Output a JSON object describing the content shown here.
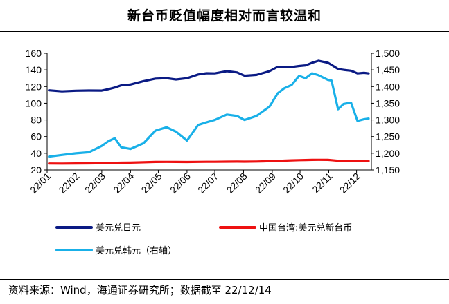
{
  "title": "新台币贬值幅度相对而言较温和",
  "source": "资料来源：Wind，海通证券研究所；数据截至 22/12/14",
  "colors": {
    "jpy": "#0a1a84",
    "twd": "#ee1111",
    "krw": "#19b0e8"
  },
  "legend": {
    "jpy": "美元兑日元",
    "twd": "中国台湾:美元兑新台币",
    "krw": "美元兑韩元（右轴）"
  },
  "chart_data": {
    "type": "line",
    "title": "新台币贬值幅度相对而言较温和",
    "x_ticks": [
      "22/01",
      "22/02",
      "22/03",
      "22/04",
      "22/05",
      "22/06",
      "22/07",
      "22/08",
      "22/09",
      "22/10",
      "22/11",
      "22/12"
    ],
    "left_axis": {
      "ylim": [
        20,
        160
      ],
      "ticks": [
        20,
        40,
        60,
        80,
        100,
        120,
        140,
        160
      ]
    },
    "right_axis": {
      "ylim": [
        1150,
        1500
      ],
      "ticks": [
        "1,150",
        "1,200",
        "1,250",
        "1,300",
        "1,350",
        "1,400",
        "1,450",
        "1,500"
      ],
      "tick_values": [
        1150,
        1200,
        1250,
        1300,
        1350,
        1400,
        1450,
        1500
      ]
    },
    "x": [
      "2022-01-03",
      "2022-01-17",
      "2022-02-01",
      "2022-02-15",
      "2022-03-01",
      "2022-03-08",
      "2022-03-15",
      "2022-03-22",
      "2022-04-01",
      "2022-04-15",
      "2022-04-28",
      "2022-05-10",
      "2022-05-20",
      "2022-06-01",
      "2022-06-13",
      "2022-06-22",
      "2022-07-01",
      "2022-07-14",
      "2022-07-25",
      "2022-08-02",
      "2022-08-15",
      "2022-08-29",
      "2022-09-07",
      "2022-09-14",
      "2022-09-22",
      "2022-09-30",
      "2022-10-07",
      "2022-10-14",
      "2022-10-21",
      "2022-10-31",
      "2022-11-04",
      "2022-11-11",
      "2022-11-17",
      "2022-11-25",
      "2022-12-02",
      "2022-12-09",
      "2022-12-14"
    ],
    "series": [
      {
        "name": "美元兑日元",
        "axis": "left",
        "values": [
          115.5,
          114.3,
          115.0,
          115.3,
          115.2,
          116.8,
          118.8,
          121.5,
          122.5,
          126.5,
          129.5,
          130.0,
          128.5,
          130.0,
          134.5,
          136.0,
          135.8,
          138.5,
          137.0,
          133.0,
          134.0,
          138.5,
          143.8,
          143.3,
          143.5,
          144.7,
          145.4,
          148.5,
          151.0,
          148.6,
          146.0,
          141.0,
          140.0,
          139.0,
          135.8,
          136.5,
          135.8
        ]
      },
      {
        "name": "中国台湾:美元兑新台币",
        "axis": "left",
        "values": [
          27.7,
          27.6,
          27.8,
          27.9,
          28.0,
          28.2,
          28.5,
          28.7,
          28.8,
          29.2,
          29.6,
          29.7,
          29.6,
          29.5,
          29.7,
          29.8,
          29.8,
          29.9,
          30.0,
          29.9,
          30.1,
          30.5,
          30.8,
          31.2,
          31.5,
          31.8,
          31.9,
          32.1,
          32.2,
          32.1,
          31.8,
          31.0,
          31.0,
          31.0,
          30.6,
          30.8,
          30.7
        ]
      },
      {
        "name": "美元兑韩元（右轴）",
        "axis": "right",
        "values": [
          1190,
          1195,
          1200,
          1203,
          1222,
          1236,
          1245,
          1218,
          1213,
          1230,
          1268,
          1278,
          1265,
          1238,
          1285,
          1293,
          1300,
          1316,
          1312,
          1300,
          1312,
          1340,
          1380,
          1395,
          1405,
          1432,
          1425,
          1440,
          1434,
          1420,
          1418,
          1332,
          1348,
          1352,
          1297,
          1302,
          1304
        ]
      }
    ]
  }
}
